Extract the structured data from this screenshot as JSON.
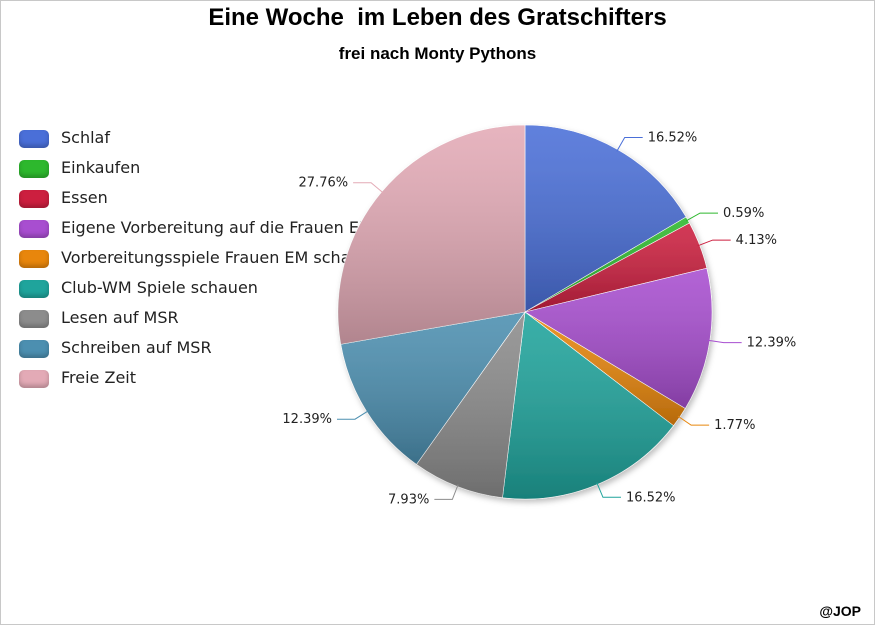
{
  "chart_data": {
    "type": "pie",
    "title": "Eine Woche  im Leben des Gratschifters",
    "subtitle": "frei nach Monty Pythons",
    "legend_position": "left",
    "categories": [
      "Schlaf",
      "Einkaufen",
      "Essen",
      "Eigene Vorbereitung auf die Frauen EM",
      "Vorbereitungsspiele Frauen EM schauen",
      "Club-WM Spiele schauen",
      "Lesen auf MSR",
      "Schreiben auf MSR",
      "Freie Zeit"
    ],
    "values": [
      16.52,
      0.59,
      4.13,
      12.39,
      1.77,
      16.52,
      7.93,
      12.39,
      27.76
    ],
    "labels": [
      "16.52%",
      "0.59%",
      "4.13%",
      "12.39%",
      "1.77%",
      "16.52%",
      "7.93%",
      "12.39%",
      "27.76%"
    ],
    "colors": [
      "#4a6fd8",
      "#2db82d",
      "#cc1f3f",
      "#a84ed0",
      "#e8860c",
      "#1fa49c",
      "#8c8c8c",
      "#4c8fb0",
      "#e3aab6"
    ]
  },
  "footer": {
    "credit": "@JOP"
  }
}
